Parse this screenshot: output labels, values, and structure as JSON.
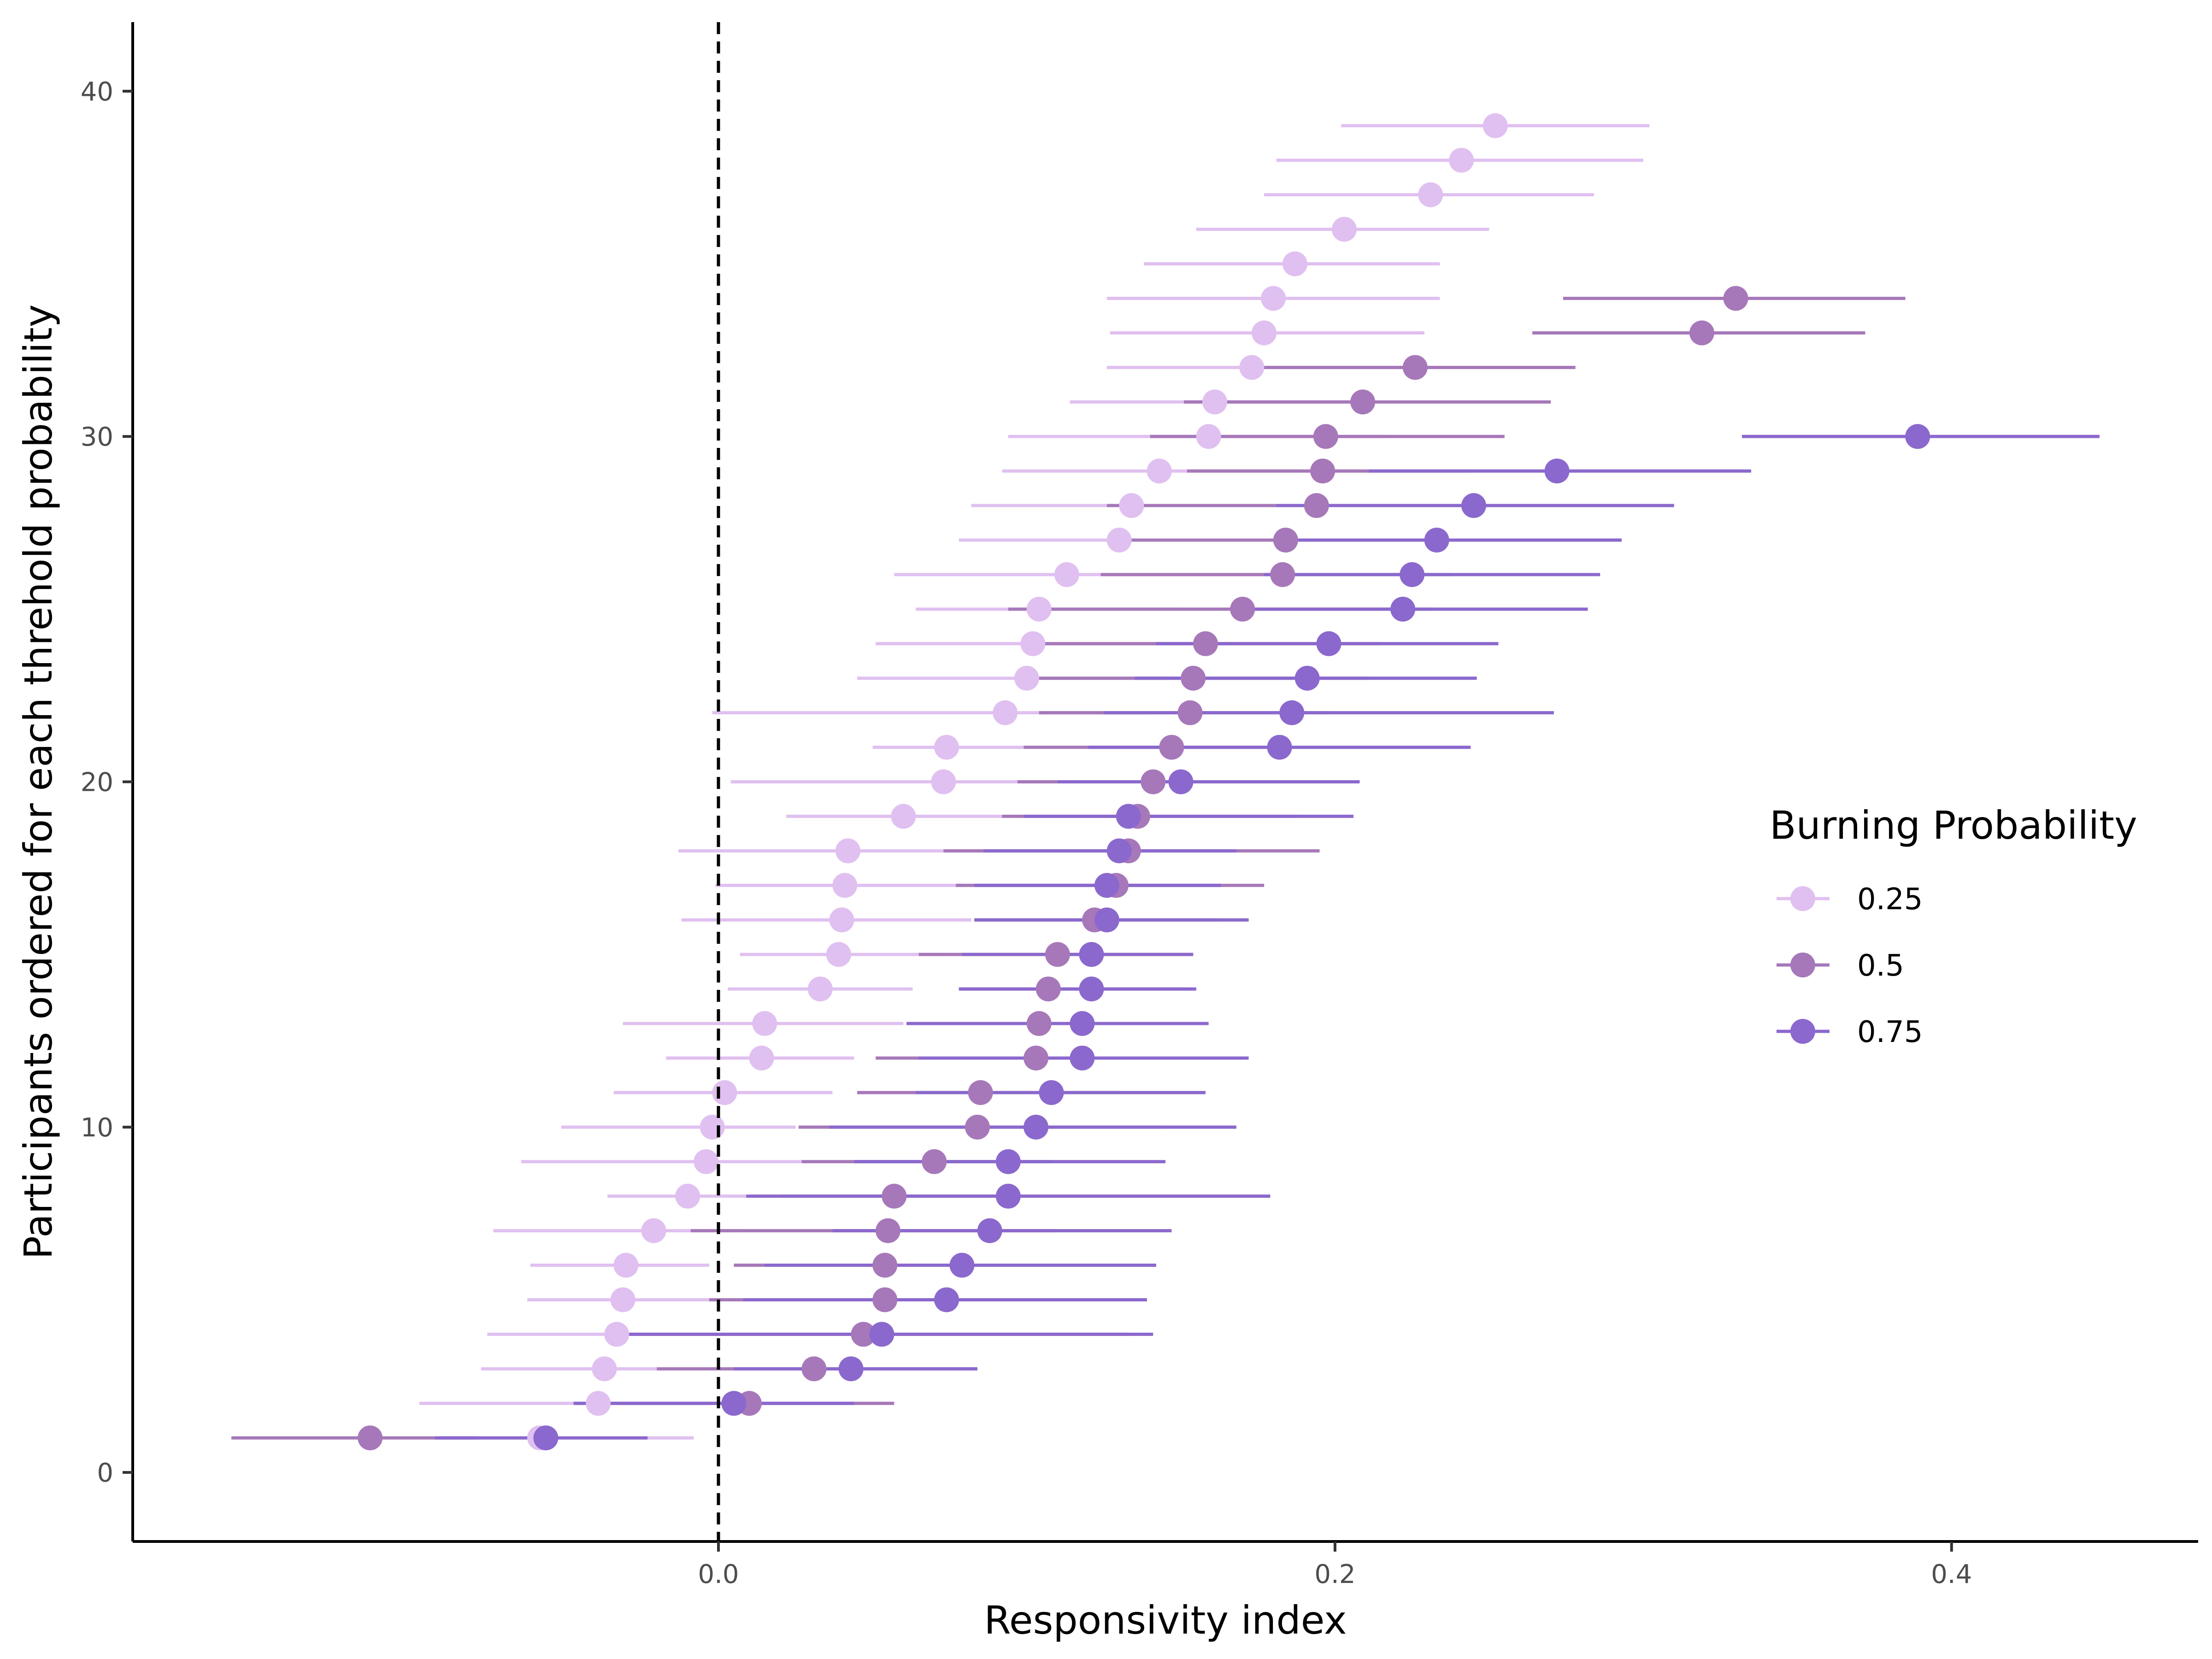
{
  "chart_data": {
    "type": "scatter",
    "subtype": "point-range",
    "xlabel": "Responsivity index",
    "ylabel": "Participants ordered for each threhold probability",
    "xlim": [
      -0.19,
      0.48
    ],
    "ylim": [
      -2,
      42
    ],
    "x_ticks": [
      0.0,
      0.2,
      0.4
    ],
    "x_tick_labels": [
      "0.0",
      "0.2",
      "0.4"
    ],
    "y_ticks": [
      0,
      10,
      20,
      30,
      40
    ],
    "y_tick_labels": [
      "0",
      "10",
      "20",
      "30",
      "40"
    ],
    "reference_line": {
      "x": 0,
      "style": "dashed",
      "color": "#000000"
    },
    "grid": false,
    "legend": {
      "title": "Burning Probability",
      "position": "right",
      "entries": [
        "0.25",
        "0.5",
        "0.75"
      ]
    },
    "series": [
      {
        "name": "0.25",
        "color": "#e0c0f0",
        "points": [
          {
            "y": 1,
            "x": -0.058,
            "lo": -0.09,
            "hi": -0.008
          },
          {
            "y": 2,
            "x": -0.039,
            "lo": -0.097,
            "hi": -0.001
          },
          {
            "y": 3,
            "x": -0.037,
            "lo": -0.077,
            "hi": -0.02
          },
          {
            "y": 4,
            "x": -0.033,
            "lo": -0.075,
            "hi": -0.028
          },
          {
            "y": 5,
            "x": -0.031,
            "lo": -0.062,
            "hi": -0.002
          },
          {
            "y": 6,
            "x": -0.03,
            "lo": -0.061,
            "hi": -0.003
          },
          {
            "y": 7,
            "x": -0.021,
            "lo": -0.073,
            "hi": 0.007
          },
          {
            "y": 8,
            "x": -0.01,
            "lo": -0.036,
            "hi": 0.009
          },
          {
            "y": 9,
            "x": -0.004,
            "lo": -0.064,
            "hi": 0.027
          },
          {
            "y": 10,
            "x": -0.002,
            "lo": -0.051,
            "hi": 0.025
          },
          {
            "y": 11,
            "x": 0.002,
            "lo": -0.034,
            "hi": 0.037
          },
          {
            "y": 12,
            "x": 0.014,
            "lo": -0.017,
            "hi": 0.044
          },
          {
            "y": 13,
            "x": 0.015,
            "lo": -0.031,
            "hi": 0.06
          },
          {
            "y": 14,
            "x": 0.033,
            "lo": 0.003,
            "hi": 0.063
          },
          {
            "y": 15,
            "x": 0.039,
            "lo": 0.007,
            "hi": 0.073
          },
          {
            "y": 16,
            "x": 0.04,
            "lo": -0.012,
            "hi": 0.082
          },
          {
            "y": 17,
            "x": 0.041,
            "lo": -0.001,
            "hi": 0.08
          },
          {
            "y": 18,
            "x": 0.042,
            "lo": -0.013,
            "hi": 0.095
          },
          {
            "y": 19,
            "x": 0.06,
            "lo": 0.022,
            "hi": 0.093
          },
          {
            "y": 20,
            "x": 0.073,
            "lo": 0.004,
            "hi": 0.11
          },
          {
            "y": 21,
            "x": 0.074,
            "lo": 0.05,
            "hi": 0.099
          },
          {
            "y": 22,
            "x": 0.093,
            "lo": -0.002,
            "hi": 0.14
          },
          {
            "y": 23,
            "x": 0.1,
            "lo": 0.045,
            "hi": 0.147
          },
          {
            "y": 24,
            "x": 0.102,
            "lo": 0.051,
            "hi": 0.165
          },
          {
            "y": 25,
            "x": 0.104,
            "lo": 0.064,
            "hi": 0.15
          },
          {
            "y": 26,
            "x": 0.113,
            "lo": 0.057,
            "hi": 0.18
          },
          {
            "y": 27,
            "x": 0.13,
            "lo": 0.078,
            "hi": 0.194
          },
          {
            "y": 28,
            "x": 0.134,
            "lo": 0.082,
            "hi": 0.19
          },
          {
            "y": 29,
            "x": 0.143,
            "lo": 0.092,
            "hi": 0.209
          },
          {
            "y": 30,
            "x": 0.159,
            "lo": 0.094,
            "hi": 0.216
          },
          {
            "y": 31,
            "x": 0.161,
            "lo": 0.114,
            "hi": 0.21
          },
          {
            "y": 32,
            "x": 0.173,
            "lo": 0.126,
            "hi": 0.226
          },
          {
            "y": 33,
            "x": 0.177,
            "lo": 0.127,
            "hi": 0.229
          },
          {
            "y": 34,
            "x": 0.18,
            "lo": 0.126,
            "hi": 0.234
          },
          {
            "y": 35,
            "x": 0.187,
            "lo": 0.138,
            "hi": 0.234
          },
          {
            "y": 36,
            "x": 0.203,
            "lo": 0.155,
            "hi": 0.25
          },
          {
            "y": 37,
            "x": 0.231,
            "lo": 0.177,
            "hi": 0.284
          },
          {
            "y": 38,
            "x": 0.241,
            "lo": 0.181,
            "hi": 0.3
          },
          {
            "y": 39,
            "x": 0.252,
            "lo": 0.202,
            "hi": 0.302
          }
        ]
      },
      {
        "name": "0.5",
        "color": "#a678b9",
        "points": [
          {
            "y": 1,
            "x": -0.113,
            "lo": -0.158,
            "hi": -0.078
          },
          {
            "y": 2,
            "x": 0.01,
            "lo": -0.046,
            "hi": 0.057
          },
          {
            "y": 3,
            "x": 0.031,
            "lo": -0.02,
            "hi": 0.084
          },
          {
            "y": 4,
            "x": 0.047,
            "lo": -0.029,
            "hi": 0.133
          },
          {
            "y": 5,
            "x": 0.054,
            "lo": -0.003,
            "hi": 0.112
          },
          {
            "y": 6,
            "x": 0.054,
            "lo": 0.005,
            "hi": 0.129
          },
          {
            "y": 7,
            "x": 0.055,
            "lo": -0.009,
            "hi": 0.109
          },
          {
            "y": 8,
            "x": 0.057,
            "lo": 0.02,
            "hi": 0.09
          },
          {
            "y": 9,
            "x": 0.07,
            "lo": 0.027,
            "hi": 0.108
          },
          {
            "y": 10,
            "x": 0.084,
            "lo": 0.026,
            "hi": 0.145
          },
          {
            "y": 11,
            "x": 0.085,
            "lo": 0.045,
            "hi": 0.13
          },
          {
            "y": 12,
            "x": 0.103,
            "lo": 0.051,
            "hi": 0.152
          },
          {
            "y": 13,
            "x": 0.104,
            "lo": 0.061,
            "hi": 0.157
          },
          {
            "y": 14,
            "x": 0.107,
            "lo": 0.078,
            "hi": 0.153
          },
          {
            "y": 15,
            "x": 0.11,
            "lo": 0.065,
            "hi": 0.154
          },
          {
            "y": 16,
            "x": 0.122,
            "lo": 0.083,
            "hi": 0.162
          },
          {
            "y": 17,
            "x": 0.129,
            "lo": 0.077,
            "hi": 0.177
          },
          {
            "y": 18,
            "x": 0.133,
            "lo": 0.073,
            "hi": 0.195
          },
          {
            "y": 19,
            "x": 0.136,
            "lo": 0.092,
            "hi": 0.188
          },
          {
            "y": 20,
            "x": 0.141,
            "lo": 0.097,
            "hi": 0.187
          },
          {
            "y": 21,
            "x": 0.147,
            "lo": 0.099,
            "hi": 0.184
          },
          {
            "y": 22,
            "x": 0.153,
            "lo": 0.104,
            "hi": 0.198
          },
          {
            "y": 23,
            "x": 0.154,
            "lo": 0.104,
            "hi": 0.211
          },
          {
            "y": 24,
            "x": 0.158,
            "lo": 0.105,
            "hi": 0.215
          },
          {
            "y": 25,
            "x": 0.17,
            "lo": 0.094,
            "hi": 0.231
          },
          {
            "y": 26,
            "x": 0.183,
            "lo": 0.124,
            "hi": 0.238
          },
          {
            "y": 27,
            "x": 0.184,
            "lo": 0.134,
            "hi": 0.233
          },
          {
            "y": 28,
            "x": 0.194,
            "lo": 0.126,
            "hi": 0.249
          },
          {
            "y": 29,
            "x": 0.196,
            "lo": 0.152,
            "hi": 0.244
          },
          {
            "y": 30,
            "x": 0.197,
            "lo": 0.14,
            "hi": 0.255
          },
          {
            "y": 31,
            "x": 0.209,
            "lo": 0.151,
            "hi": 0.27
          },
          {
            "y": 32,
            "x": 0.226,
            "lo": 0.169,
            "hi": 0.278
          },
          {
            "y": 33,
            "x": 0.319,
            "lo": 0.264,
            "hi": 0.372
          },
          {
            "y": 34,
            "x": 0.33,
            "lo": 0.274,
            "hi": 0.385
          }
        ]
      },
      {
        "name": "0.75",
        "color": "#8b68cd",
        "points": [
          {
            "y": 1,
            "x": -0.056,
            "lo": -0.092,
            "hi": -0.023
          },
          {
            "y": 2,
            "x": 0.005,
            "lo": -0.047,
            "hi": 0.044
          },
          {
            "y": 3,
            "x": 0.043,
            "lo": 0.005,
            "hi": 0.084
          },
          {
            "y": 4,
            "x": 0.053,
            "lo": -0.029,
            "hi": 0.141
          },
          {
            "y": 5,
            "x": 0.074,
            "lo": 0.008,
            "hi": 0.139
          },
          {
            "y": 6,
            "x": 0.079,
            "lo": 0.015,
            "hi": 0.142
          },
          {
            "y": 7,
            "x": 0.088,
            "lo": 0.037,
            "hi": 0.147
          },
          {
            "y": 8,
            "x": 0.094,
            "lo": 0.009,
            "hi": 0.179
          },
          {
            "y": 9,
            "x": 0.094,
            "lo": 0.044,
            "hi": 0.145
          },
          {
            "y": 10,
            "x": 0.103,
            "lo": 0.036,
            "hi": 0.168
          },
          {
            "y": 11,
            "x": 0.108,
            "lo": 0.064,
            "hi": 0.158
          },
          {
            "y": 12,
            "x": 0.118,
            "lo": 0.065,
            "hi": 0.172
          },
          {
            "y": 13,
            "x": 0.118,
            "lo": 0.061,
            "hi": 0.159
          },
          {
            "y": 14,
            "x": 0.121,
            "lo": 0.078,
            "hi": 0.155
          },
          {
            "y": 15,
            "x": 0.121,
            "lo": 0.079,
            "hi": 0.154
          },
          {
            "y": 16,
            "x": 0.126,
            "lo": 0.083,
            "hi": 0.172
          },
          {
            "y": 17,
            "x": 0.126,
            "lo": 0.083,
            "hi": 0.163
          },
          {
            "y": 18,
            "x": 0.13,
            "lo": 0.086,
            "hi": 0.168
          },
          {
            "y": 19,
            "x": 0.133,
            "lo": 0.099,
            "hi": 0.206
          },
          {
            "y": 20,
            "x": 0.15,
            "lo": 0.11,
            "hi": 0.208
          },
          {
            "y": 21,
            "x": 0.182,
            "lo": 0.12,
            "hi": 0.244
          },
          {
            "y": 22,
            "x": 0.186,
            "lo": 0.125,
            "hi": 0.271
          },
          {
            "y": 23,
            "x": 0.191,
            "lo": 0.135,
            "hi": 0.246
          },
          {
            "y": 24,
            "x": 0.198,
            "lo": 0.142,
            "hi": 0.253
          },
          {
            "y": 25,
            "x": 0.222,
            "lo": 0.17,
            "hi": 0.282
          },
          {
            "y": 26,
            "x": 0.225,
            "lo": 0.177,
            "hi": 0.286
          },
          {
            "y": 27,
            "x": 0.233,
            "lo": 0.18,
            "hi": 0.293
          },
          {
            "y": 28,
            "x": 0.245,
            "lo": 0.181,
            "hi": 0.31
          },
          {
            "y": 29,
            "x": 0.272,
            "lo": 0.211,
            "hi": 0.335
          },
          {
            "y": 30,
            "x": 0.389,
            "lo": 0.332,
            "hi": 0.448
          }
        ]
      }
    ]
  }
}
